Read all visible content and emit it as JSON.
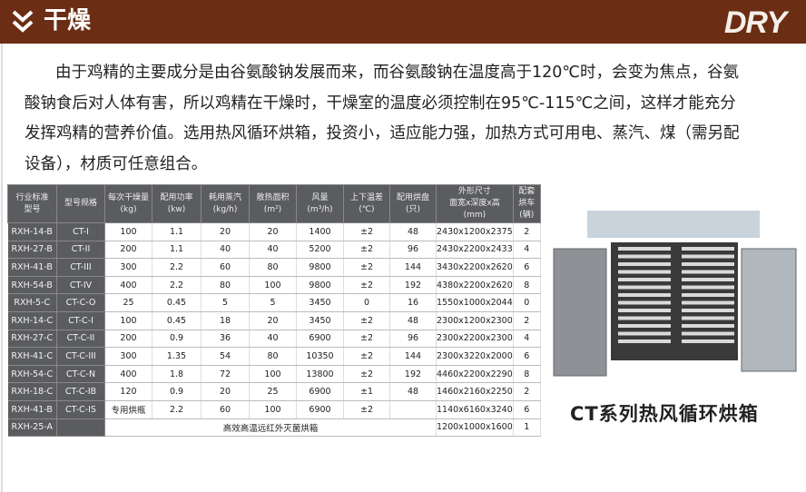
{
  "header": {
    "title": "干燥",
    "logo": "DRY",
    "icon": "double-chevron-down-icon",
    "color": "#6b2d14"
  },
  "paragraph": {
    "lines": [
      "由于鸡精的主要成分是由谷氨酸钠发展而来，而谷氨酸钠在温度高于120℃时，会变为焦点，谷氨",
      "酸钠食后对人体有害，所以鸡精在干燥时，干燥室的温度必须控制在95℃-115℃之间，这样才能充分",
      "发挥鸡精的营养价值。选用热风循环烘箱，投资小，适应能力强，加热方式可用电、蒸汽、煤（需另配",
      "设备），材质可任意组合。"
    ]
  },
  "table": {
    "headers": [
      [
        "行业标准",
        "型号"
      ],
      [
        "型号规格"
      ],
      [
        "每次干燥量",
        "(kg)"
      ],
      [
        "配用功率",
        "(kw)"
      ],
      [
        "耗用蒸汽",
        "(kg/h)"
      ],
      [
        "散热面积",
        "(m²)"
      ],
      [
        "风量",
        "(m³/h)"
      ],
      [
        "上下温差",
        "(℃)"
      ],
      [
        "配用烘盘",
        "(只)"
      ],
      [
        "外形尺寸",
        "面宽x深度x高",
        "(mm)"
      ],
      [
        "配套",
        "烘车",
        "(辆)"
      ]
    ],
    "rows": [
      [
        "RXH-14-B",
        "CT-I",
        "100",
        "1.1",
        "20",
        "20",
        "1400",
        "±2",
        "48",
        "2430x1200x2375",
        "2"
      ],
      [
        "RXH-27-B",
        "CT-II",
        "200",
        "1.1",
        "40",
        "40",
        "5200",
        "±2",
        "96",
        "2430x2200x2433",
        "4"
      ],
      [
        "RXH-41-B",
        "CT-III",
        "300",
        "2.2",
        "60",
        "80",
        "9800",
        "±2",
        "144",
        "3430x2200x2620",
        "6"
      ],
      [
        "RXH-54-B",
        "CT-IV",
        "400",
        "2.2",
        "80",
        "100",
        "9800",
        "±2",
        "192",
        "4380x2200x2620",
        "8"
      ],
      [
        "RXH-5-C",
        "CT-C-O",
        "25",
        "0.45",
        "5",
        "5",
        "3450",
        "0",
        "16",
        "1550x1000x2044",
        "0"
      ],
      [
        "RXH-14-C",
        "CT-C-I",
        "100",
        "0.45",
        "18",
        "20",
        "3450",
        "±2",
        "48",
        "2300x1200x2300",
        "2"
      ],
      [
        "RXH-27-C",
        "CT-C-II",
        "200",
        "0.9",
        "36",
        "40",
        "6900",
        "±2",
        "96",
        "2300x2200x2300",
        "4"
      ],
      [
        "RXH-41-C",
        "CT-C-III",
        "300",
        "1.35",
        "54",
        "80",
        "10350",
        "±2",
        "144",
        "2300x3220x2000",
        "6"
      ],
      [
        "RXH-54-C",
        "CT-C-N",
        "400",
        "1.8",
        "72",
        "100",
        "13800",
        "±2",
        "192",
        "4460x2200x2290",
        "8"
      ],
      [
        "RXH-18-C",
        "CT-C-IB",
        "120",
        "0.9",
        "20",
        "25",
        "6900",
        "±1",
        "48",
        "1460x2160x2250",
        "2"
      ],
      [
        "RXH-41-B",
        "CT-C-IS",
        "专用烘瓶",
        "2.2",
        "60",
        "100",
        "6900",
        "±2",
        "",
        "1140x6160x3240",
        "6"
      ]
    ],
    "last_row": {
      "code": "RXH-25-A",
      "model": "",
      "merged": "高效高温远红外灭菌烘箱",
      "size": "1200x1000x1600",
      "carts": "1"
    }
  },
  "product": {
    "caption": "CT系列热风循环烘箱"
  }
}
